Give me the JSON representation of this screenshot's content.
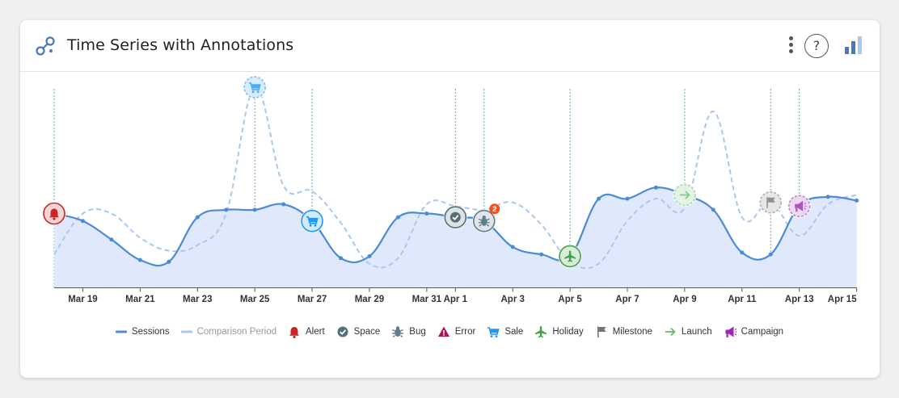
{
  "card": {
    "title": "Time Series with Annotations",
    "help_label": "?"
  },
  "colors": {
    "sessions": "#4a8ad6",
    "sessions_fill": "#dfe9fb",
    "comparison": "#a9c8ee",
    "alert": "#c62828",
    "space": "#546e7a",
    "bug": "#607d8b",
    "error": "#ad1457",
    "sale": "#2196f3",
    "holiday": "#43a047",
    "milestone": "#757575",
    "launch": "#66bb6a",
    "campaign": "#9c27b0",
    "badge": "#f4511e",
    "annotation_line": "#5fa7b0"
  },
  "chart_data": {
    "type": "line",
    "x_start": "Mar 18",
    "x": [
      "Mar 18",
      "Mar 19",
      "Mar 20",
      "Mar 21",
      "Mar 22",
      "Mar 23",
      "Mar 24",
      "Mar 25",
      "Mar 26",
      "Mar 27",
      "Mar 28",
      "Mar 29",
      "Mar 30",
      "Mar 31",
      "Apr 1",
      "Apr 2",
      "Apr 3",
      "Apr 4",
      "Apr 5",
      "Apr 6",
      "Apr 7",
      "Apr 8",
      "Apr 9",
      "Apr 10",
      "Apr 11",
      "Apr 12",
      "Apr 13",
      "Apr 14",
      "Apr 15"
    ],
    "series": [
      {
        "name": "Sessions",
        "values": [
          40,
          36,
          26,
          15,
          14,
          38,
          42,
          42,
          45,
          36,
          16,
          17,
          38,
          40,
          38,
          36,
          22,
          18,
          17,
          48,
          48,
          54,
          50,
          42,
          19,
          18,
          44,
          49,
          47
        ]
      },
      {
        "name": "Comparison Period",
        "values": [
          18,
          40,
          40,
          27,
          20,
          23,
          40,
          108,
          55,
          52,
          35,
          13,
          16,
          45,
          44,
          42,
          46,
          34,
          14,
          13,
          36,
          48,
          43,
          95,
          38,
          46,
          28,
          45,
          50
        ]
      }
    ],
    "x_tick_labels": [
      "Mar 19",
      "Mar 21",
      "Mar 23",
      "Mar 25",
      "Mar 27",
      "Mar 29",
      "Mar 31",
      "Apr 1",
      "Apr 3",
      "Apr 5",
      "Apr 7",
      "Apr 9",
      "Apr 11",
      "Apr 13",
      "Apr 15"
    ],
    "ylim": [
      0,
      120
    ],
    "annotations": [
      {
        "date": "Mar 18",
        "type": "Alert",
        "icon": "bell-icon",
        "on": "Sessions"
      },
      {
        "date": "Mar 25",
        "type": "Sale",
        "icon": "cart-icon",
        "on": "Comparison Period"
      },
      {
        "date": "Mar 27",
        "type": "Sale",
        "icon": "cart-icon",
        "on": "Sessions"
      },
      {
        "date": "Apr 1",
        "type": "Space",
        "icon": "check-circle-icon",
        "on": "Sessions"
      },
      {
        "date": "Apr 2",
        "type": "Bug",
        "icon": "bug-icon",
        "on": "Sessions",
        "badge": "2"
      },
      {
        "date": "Apr 5",
        "type": "Holiday",
        "icon": "plane-icon",
        "on": "Sessions"
      },
      {
        "date": "Apr 9",
        "type": "Launch",
        "icon": "arrow-right-icon",
        "on": "Sessions"
      },
      {
        "date": "Apr 12",
        "type": "Milestone",
        "icon": "flag-icon",
        "on": "Comparison Period"
      },
      {
        "date": "Apr 13",
        "type": "Campaign",
        "icon": "megaphone-icon",
        "on": "Sessions"
      }
    ],
    "legend_placement": "bottom-center"
  },
  "legend": [
    {
      "label": "Sessions",
      "kind": "line",
      "color_key": "sessions"
    },
    {
      "label": "Comparison Period",
      "kind": "line-muted",
      "color_key": "comparison"
    },
    {
      "label": "Alert",
      "kind": "icon",
      "icon": "bell-icon",
      "color_key": "alert"
    },
    {
      "label": "Space",
      "kind": "icon",
      "icon": "check-circle-icon",
      "color_key": "space"
    },
    {
      "label": "Bug",
      "kind": "icon",
      "icon": "bug-icon",
      "color_key": "bug"
    },
    {
      "label": "Error",
      "kind": "icon",
      "icon": "warning-icon",
      "color_key": "error"
    },
    {
      "label": "Sale",
      "kind": "icon",
      "icon": "cart-icon",
      "color_key": "sale"
    },
    {
      "label": "Holiday",
      "kind": "icon",
      "icon": "plane-icon",
      "color_key": "holiday"
    },
    {
      "label": "Milestone",
      "kind": "icon",
      "icon": "flag-icon",
      "color_key": "milestone"
    },
    {
      "label": "Launch",
      "kind": "icon",
      "icon": "arrow-right-icon",
      "color_key": "launch"
    },
    {
      "label": "Campaign",
      "kind": "icon",
      "icon": "megaphone-icon",
      "color_key": "campaign"
    }
  ]
}
